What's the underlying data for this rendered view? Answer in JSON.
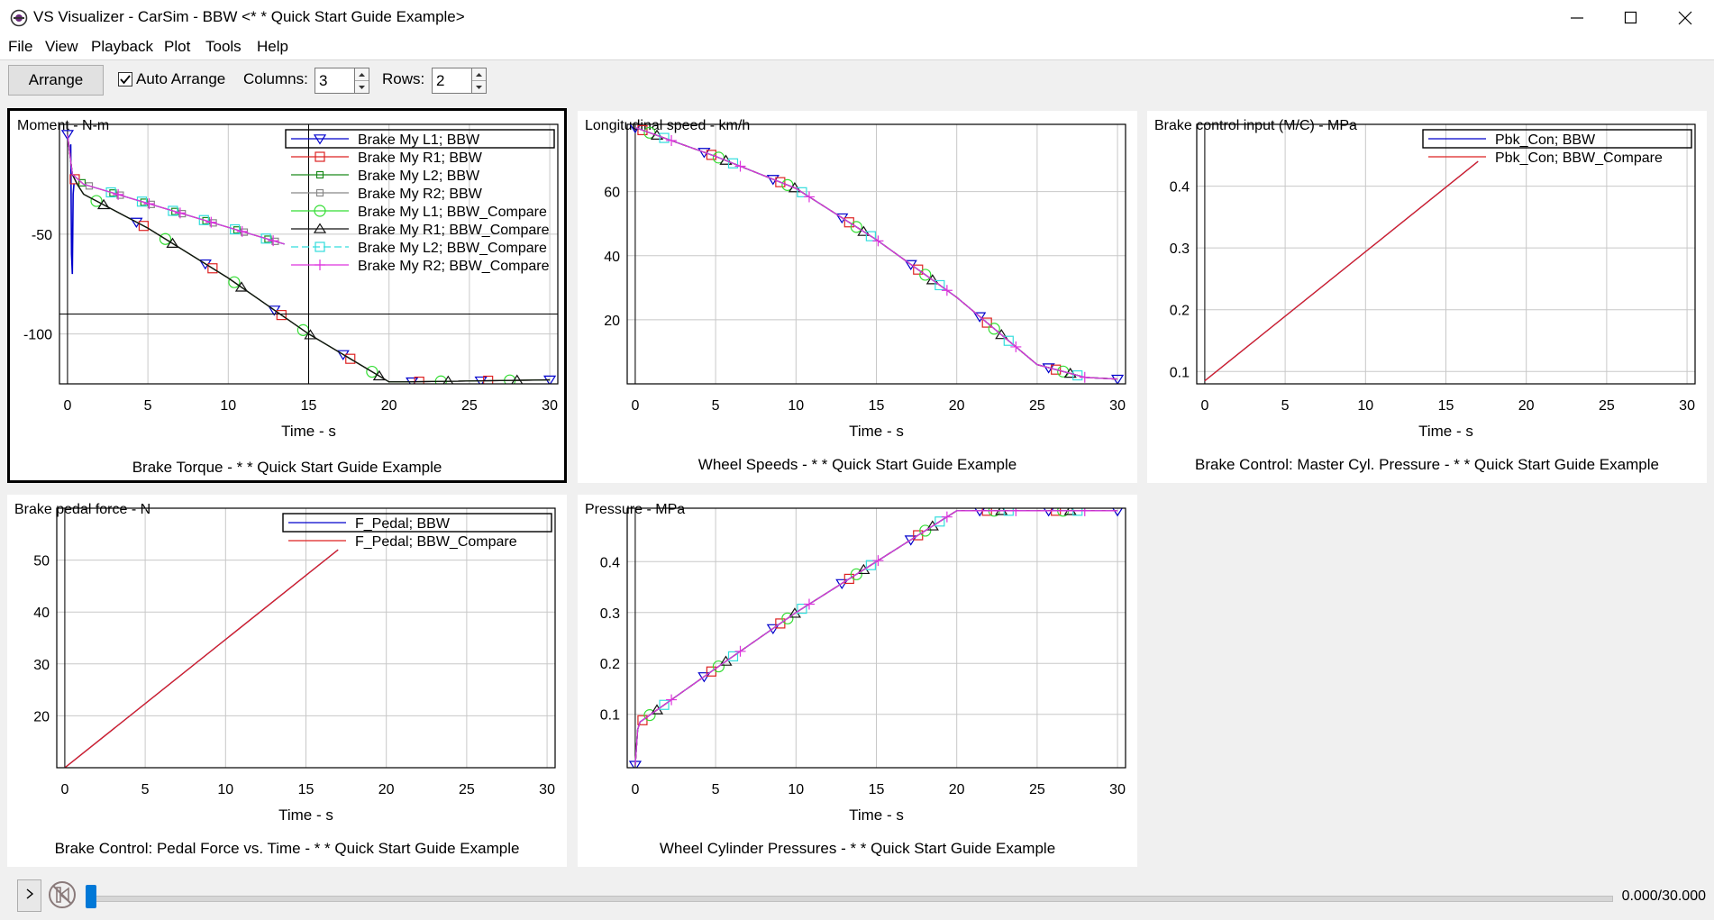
{
  "window": {
    "title": "VS Visualizer - CarSim - BBW <* * Quick Start Guide Example>"
  },
  "menu": [
    "File",
    "View",
    "Playback",
    "Plot",
    "Tools",
    "Help"
  ],
  "toolbar": {
    "arrange_label": "Arrange",
    "auto_arrange_label": "Auto Arrange",
    "auto_arrange_checked": true,
    "columns_label": "Columns:",
    "columns_value": "3",
    "rows_label": "Rows:",
    "rows_value": "2"
  },
  "status": {
    "time_readout": "0.000/30.000",
    "progress": 0.0
  },
  "colors": {
    "accent": "#0078d7"
  },
  "chart_data": [
    {
      "type": "line",
      "ylabel": "Moment - N-m",
      "xlabel": "Time - s",
      "caption": "Brake Torque - * * Quick Start Guide Example",
      "xlim": [
        -0.5,
        30.5
      ],
      "ylim": [
        -125,
        5
      ],
      "xticks": [
        0,
        5,
        10,
        15,
        20,
        25,
        30
      ],
      "yticks": [
        -50,
        -100
      ],
      "legend_position": "top-right",
      "crosshair": {
        "x": 15,
        "y": -90
      },
      "series": [
        {
          "name": "Brake My L1; BBW",
          "color": "#0000cc",
          "marker": "tri-down",
          "dash": "",
          "x": [
            0,
            0.3,
            0.6,
            1,
            5,
            10,
            15,
            20,
            21,
            30
          ],
          "y": [
            0,
            -20,
            -25,
            -30,
            -47,
            -72,
            -100,
            -124,
            -124,
            -123
          ]
        },
        {
          "name": "Brake My R1; BBW",
          "color": "#dd2222",
          "marker": "square",
          "dash": "",
          "x": [
            0,
            0.3,
            0.6,
            1,
            5,
            10,
            15,
            20,
            21,
            30
          ],
          "y": [
            0,
            -20,
            -25,
            -30,
            -47,
            -72,
            -100,
            -124,
            -124,
            -123
          ]
        },
        {
          "name": "Brake My L2; BBW",
          "color": "#1a8a1a",
          "marker": "square-small",
          "dash": "",
          "x": [
            0,
            0.3,
            1,
            13.5
          ],
          "y": [
            0,
            -20,
            -25,
            -55
          ]
        },
        {
          "name": "Brake My R2; BBW",
          "color": "#888888",
          "marker": "square-small",
          "dash": "",
          "x": [
            0,
            0.3,
            1,
            13.5
          ],
          "y": [
            0,
            -20,
            -25,
            -55
          ]
        },
        {
          "name": "Brake My L1; BBW_Compare",
          "color": "#33dd33",
          "marker": "circle",
          "dash": "",
          "x": [
            0,
            0.3,
            0.6,
            1,
            5,
            10,
            15,
            20,
            21,
            30
          ],
          "y": [
            0,
            -20,
            -25,
            -30,
            -47,
            -72,
            -100,
            -124,
            -124,
            -123
          ]
        },
        {
          "name": "Brake My R1; BBW_Compare",
          "color": "#111111",
          "marker": "tri-up",
          "dash": "",
          "x": [
            0,
            0.3,
            0.6,
            1,
            5,
            10,
            15,
            20,
            21,
            30
          ],
          "y": [
            0,
            -20,
            -25,
            -30,
            -47,
            -72,
            -100,
            -124,
            -124,
            -123
          ]
        },
        {
          "name": "Brake My L2; BBW_Compare",
          "color": "#33dddd",
          "marker": "square",
          "dash": "8,4",
          "x": [
            0,
            0.3,
            1,
            13.5
          ],
          "y": [
            0,
            -20,
            -25,
            -55
          ]
        },
        {
          "name": "Brake My R2; BBW_Compare",
          "color": "#dd33dd",
          "marker": "plus",
          "dash": "",
          "x": [
            0,
            0.3,
            1,
            13.5
          ],
          "y": [
            0,
            -20,
            -25,
            -55
          ]
        }
      ],
      "spike": {
        "color": "#0000cc",
        "x": [
          0.2,
          0.25,
          0.3,
          0.35,
          0.4
        ],
        "y": [
          -5,
          -60,
          -70,
          -30,
          -25
        ]
      }
    },
    {
      "type": "line",
      "ylabel": "Longitudinal speed - km/h",
      "xlabel": "Time - s",
      "caption": "Wheel Speeds - * * Quick Start Guide Example",
      "xlim": [
        -0.5,
        30.5
      ],
      "ylim": [
        0,
        81
      ],
      "xticks": [
        0,
        5,
        10,
        15,
        20,
        25,
        30
      ],
      "yticks": [
        20,
        40,
        60
      ],
      "legend_position": "none",
      "series": [
        {
          "name": "",
          "color": "#0000cc",
          "marker": "tri-down",
          "dash": "",
          "x": [
            0,
            5,
            10,
            15,
            20,
            25,
            28,
            30
          ],
          "y": [
            80,
            71,
            61,
            45,
            27,
            6,
            2,
            1.5
          ]
        },
        {
          "name": "",
          "color": "#dd2222",
          "marker": "square",
          "dash": "",
          "x": [
            0,
            5,
            10,
            15,
            20,
            25,
            28,
            30
          ],
          "y": [
            80,
            71,
            61,
            45,
            27,
            6,
            2,
            1.5
          ]
        },
        {
          "name": "",
          "color": "#33dd33",
          "marker": "circle",
          "dash": "",
          "x": [
            0,
            5,
            10,
            15,
            20,
            25,
            28,
            30
          ],
          "y": [
            80,
            71,
            61,
            45,
            27,
            6,
            2,
            1.5
          ]
        },
        {
          "name": "",
          "color": "#111111",
          "marker": "tri-up",
          "dash": "",
          "x": [
            0,
            5,
            10,
            15,
            20,
            25,
            28,
            30
          ],
          "y": [
            80,
            71,
            61,
            45,
            27,
            6,
            2,
            1.5
          ]
        },
        {
          "name": "",
          "color": "#33dddd",
          "marker": "square",
          "dash": "8,4",
          "x": [
            0,
            5,
            10,
            15,
            20,
            25,
            28,
            30
          ],
          "y": [
            80,
            71,
            61,
            45,
            27,
            6,
            2,
            1.5
          ]
        },
        {
          "name": "",
          "color": "#dd33dd",
          "marker": "plus",
          "dash": "",
          "x": [
            0,
            5,
            10,
            15,
            20,
            25,
            28,
            30
          ],
          "y": [
            80,
            71,
            61,
            45,
            27,
            6,
            2,
            1.5
          ]
        }
      ]
    },
    {
      "type": "line",
      "ylabel": "Brake control input (M/C) - MPa",
      "xlabel": "Time - s",
      "caption": "Brake Control: Master Cyl. Pressure - * * Quick Start Guide Example",
      "xlim": [
        -0.5,
        30.5
      ],
      "ylim": [
        0.08,
        0.5
      ],
      "xticks": [
        0,
        5,
        10,
        15,
        20,
        25,
        30
      ],
      "yticks": [
        0.1,
        0.2,
        0.3,
        0.4
      ],
      "legend_position": "top-right",
      "series": [
        {
          "name": "Pbk_Con; BBW",
          "color": "#0000cc",
          "marker": "",
          "dash": "",
          "x": [
            0,
            17
          ],
          "y": [
            0.085,
            0.44
          ]
        },
        {
          "name": "Pbk_Con; BBW_Compare",
          "color": "#dd2222",
          "marker": "",
          "dash": "",
          "x": [
            0,
            17
          ],
          "y": [
            0.085,
            0.44
          ]
        }
      ]
    },
    {
      "type": "line",
      "ylabel": "Brake pedal force - N",
      "xlabel": "Time - s",
      "caption": "Brake Control: Pedal Force vs. Time - * * Quick Start Guide Example",
      "xlim": [
        -0.5,
        30.5
      ],
      "ylim": [
        10,
        60
      ],
      "xticks": [
        0,
        5,
        10,
        15,
        20,
        25,
        30
      ],
      "yticks": [
        20,
        30,
        40,
        50
      ],
      "legend_position": "top-right",
      "series": [
        {
          "name": "F_Pedal; BBW",
          "color": "#0000cc",
          "marker": "",
          "dash": "",
          "x": [
            0,
            17
          ],
          "y": [
            10,
            52
          ]
        },
        {
          "name": "F_Pedal; BBW_Compare",
          "color": "#dd2222",
          "marker": "",
          "dash": "",
          "x": [
            0,
            17
          ],
          "y": [
            10,
            52
          ]
        }
      ]
    },
    {
      "type": "line",
      "ylabel": "Pressure - MPa",
      "xlabel": "Time - s",
      "caption": "Wheel Cylinder Pressures - * * Quick Start Guide Example",
      "xlim": [
        -0.5,
        30.5
      ],
      "ylim": [
        -0.005,
        0.505
      ],
      "xticks": [
        0,
        5,
        10,
        15,
        20,
        25,
        30
      ],
      "yticks": [
        0.1,
        0.2,
        0.3,
        0.4
      ],
      "legend_position": "none",
      "series": [
        {
          "name": "",
          "color": "#0000cc",
          "marker": "tri-down",
          "dash": "",
          "x": [
            0,
            0.15,
            0.3,
            5,
            10,
            15,
            20,
            21,
            30
          ],
          "y": [
            0,
            0.07,
            0.085,
            0.19,
            0.3,
            0.4,
            0.5,
            0.5,
            0.5
          ]
        },
        {
          "name": "",
          "color": "#dd2222",
          "marker": "square",
          "dash": "",
          "x": [
            0,
            0.15,
            0.3,
            5,
            10,
            15,
            20,
            21,
            30
          ],
          "y": [
            0,
            0.07,
            0.085,
            0.19,
            0.3,
            0.4,
            0.5,
            0.5,
            0.5
          ]
        },
        {
          "name": "",
          "color": "#33dd33",
          "marker": "circle",
          "dash": "",
          "x": [
            0,
            0.15,
            0.3,
            5,
            10,
            15,
            20,
            21,
            30
          ],
          "y": [
            0,
            0.07,
            0.085,
            0.19,
            0.3,
            0.4,
            0.5,
            0.5,
            0.5
          ]
        },
        {
          "name": "",
          "color": "#111111",
          "marker": "tri-up",
          "dash": "",
          "x": [
            0,
            0.15,
            0.3,
            5,
            10,
            15,
            20,
            21,
            30
          ],
          "y": [
            0,
            0.07,
            0.085,
            0.19,
            0.3,
            0.4,
            0.5,
            0.5,
            0.5
          ]
        },
        {
          "name": "",
          "color": "#33dddd",
          "marker": "square",
          "dash": "8,4",
          "x": [
            0,
            0.15,
            0.3,
            5,
            10,
            15,
            20,
            21,
            30
          ],
          "y": [
            0,
            0.07,
            0.085,
            0.19,
            0.3,
            0.4,
            0.5,
            0.5,
            0.5
          ]
        },
        {
          "name": "",
          "color": "#dd33dd",
          "marker": "plus",
          "dash": "",
          "x": [
            0,
            0.15,
            0.3,
            5,
            10,
            15,
            20,
            21,
            30
          ],
          "y": [
            0,
            0.07,
            0.085,
            0.19,
            0.3,
            0.4,
            0.5,
            0.5,
            0.5
          ]
        }
      ]
    }
  ]
}
